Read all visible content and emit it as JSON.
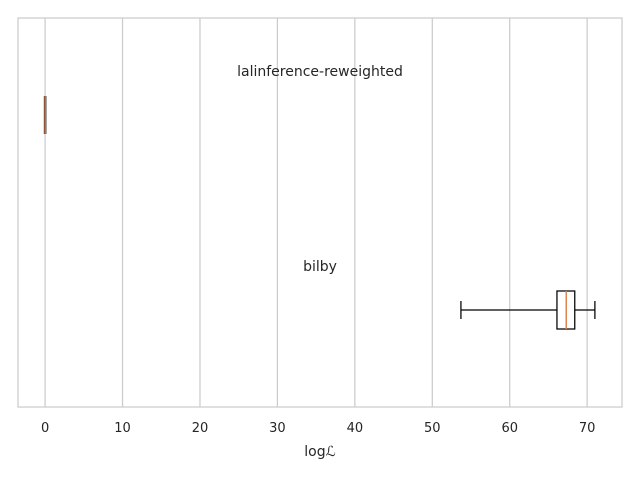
{
  "chart_data": {
    "type": "boxplot",
    "orientation": "horizontal",
    "title": "",
    "xlabel": "logℒ",
    "ylabel": "",
    "xlim": [
      -3.5,
      74.5
    ],
    "xticks": [
      0,
      10,
      20,
      30,
      40,
      50,
      60,
      70
    ],
    "grid": "vertical",
    "colors": {
      "frame": "#cccccc",
      "grid": "#cccccc",
      "box": "#000000",
      "median": "#dd8452",
      "text": "#262626"
    },
    "series": [
      {
        "name": "lalinference-reweighted",
        "whisker_low": 0.0,
        "q1": 0.0,
        "median": 0.0,
        "q3": 0.0,
        "whisker_high": 0.0
      },
      {
        "name": "bilby",
        "whisker_low": 53.7,
        "q1": 66.1,
        "median": 67.3,
        "q3": 68.4,
        "whisker_high": 71.0
      }
    ]
  }
}
